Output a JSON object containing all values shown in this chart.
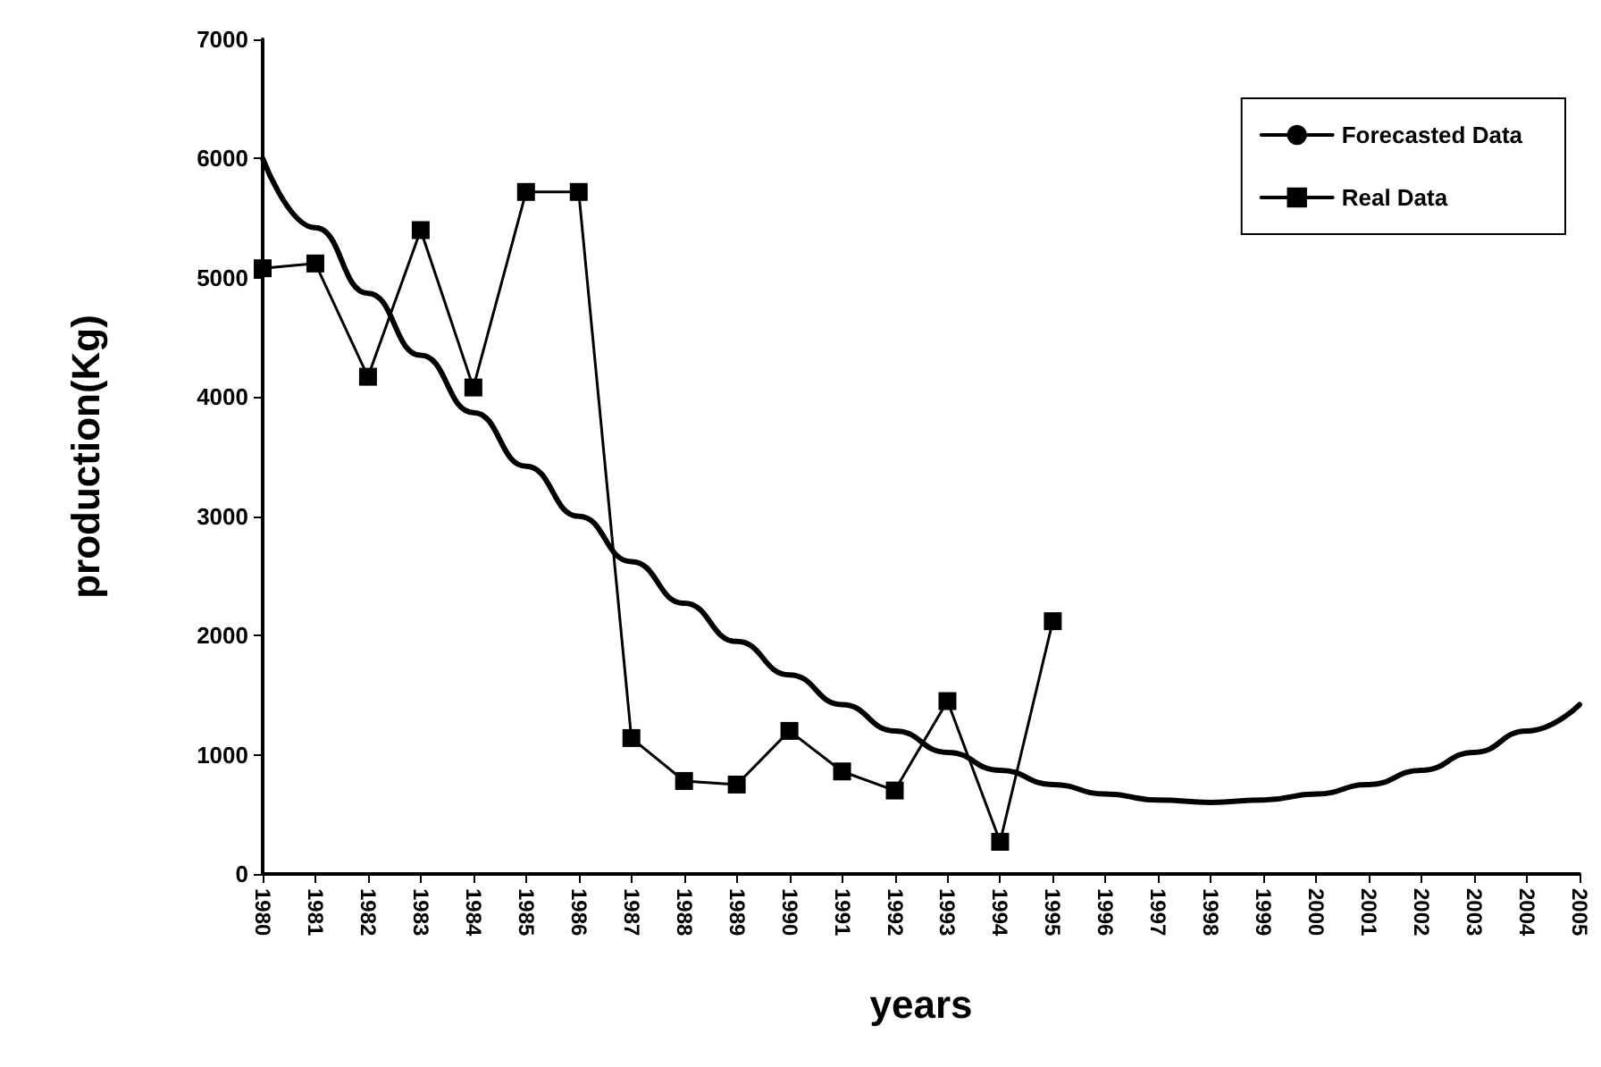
{
  "chart_data": {
    "type": "line",
    "xlabel": "years",
    "ylabel": "production(Kg)",
    "categories": [
      "1980",
      "1981",
      "1982",
      "1983",
      "1984",
      "1985",
      "1986",
      "1987",
      "1988",
      "1989",
      "1990",
      "1991",
      "1992",
      "1993",
      "1994",
      "1995",
      "1996",
      "1997",
      "1998",
      "1999",
      "2000",
      "2001",
      "2002",
      "2003",
      "2004",
      "2005"
    ],
    "series": [
      {
        "name": "Forecasted Data",
        "color": "#000000",
        "marker": "none",
        "values": [
          6000,
          5420,
          4870,
          4350,
          3870,
          3420,
          3000,
          2620,
          2270,
          1950,
          1670,
          1420,
          1200,
          1020,
          870,
          750,
          670,
          620,
          600,
          620,
          670,
          750,
          870,
          1020,
          1200,
          1420
        ]
      },
      {
        "name": "Real Data",
        "color": "#000000",
        "marker": "square",
        "values": [
          5080,
          5120,
          4170,
          5400,
          4080,
          5720,
          5720,
          1140,
          780,
          750,
          1200,
          860,
          700,
          1450,
          270,
          2120,
          null,
          null,
          null,
          null,
          null,
          null,
          null,
          null,
          null,
          null
        ]
      }
    ],
    "ylim": [
      0,
      7000
    ],
    "yticks": [
      0,
      1000,
      2000,
      3000,
      4000,
      5000,
      6000,
      7000
    ],
    "grid": false,
    "legend": "top right",
    "line_style": "solid"
  }
}
